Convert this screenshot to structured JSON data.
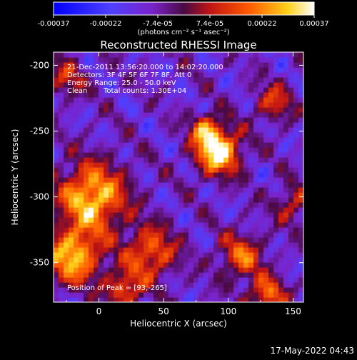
{
  "chart_data": {
    "type": "heatmap",
    "title": "Reconstructed RHESSI Image",
    "xlabel": "Heliocentric X (arcsec)",
    "ylabel": "Heliocentric Y (arcsec)",
    "xlim": [
      -35,
      158
    ],
    "ylim": [
      -380,
      -190
    ],
    "x_ticks": [
      0,
      50,
      100,
      150
    ],
    "y_ticks": [
      -200,
      -250,
      -300,
      -350
    ],
    "colorbar": {
      "range": [
        -0.00037,
        0.00037
      ],
      "ticks": [
        "-0.00037",
        "-0.00022",
        "-7.4e-05",
        "7.4e-05",
        "0.00022",
        "0.00037"
      ],
      "unit_label": "(photons cm⁻² s⁻¹ asec⁻²)",
      "colormap": "RHESSI blue-purple-red-yellow-white"
    },
    "annotations": {
      "time": "21-Dec-2011 13:56:20.000 to 14:02:20.000",
      "detectors": "Detectors: 3F 4F 5F 6F 7F 8F, Att 0",
      "energy": "Energy Range: 25.0 - 50.0 keV",
      "clean": "Clean",
      "counts": "Total counts: 1.30E+04",
      "peak": "Position of Peak = [93,-265]"
    },
    "peak_position": [
      93,
      -265
    ],
    "hotspots": [
      {
        "x": 92,
        "y": -265,
        "amp": 1.0,
        "sigma": 12
      },
      {
        "x": 82,
        "y": -248,
        "amp": 0.55,
        "sigma": 8
      },
      {
        "x": -5,
        "y": -300,
        "amp": 0.85,
        "sigma": 18
      },
      {
        "x": -20,
        "y": -345,
        "amp": 0.8,
        "sigma": 15
      },
      {
        "x": 40,
        "y": -342,
        "amp": 0.6,
        "sigma": 14
      },
      {
        "x": 110,
        "y": -345,
        "amp": 0.55,
        "sigma": 12
      },
      {
        "x": 130,
        "y": -375,
        "amp": 0.6,
        "sigma": 10
      },
      {
        "x": -25,
        "y": -210,
        "amp": 0.4,
        "sigma": 10
      },
      {
        "x": 135,
        "y": -228,
        "amp": 0.45,
        "sigma": 10
      },
      {
        "x": 150,
        "y": -305,
        "amp": 0.4,
        "sigma": 10
      },
      {
        "x": 20,
        "y": -370,
        "amp": 0.55,
        "sigma": 10
      }
    ]
  },
  "footer": {
    "timestamp": "17-May-2022 04:43"
  }
}
